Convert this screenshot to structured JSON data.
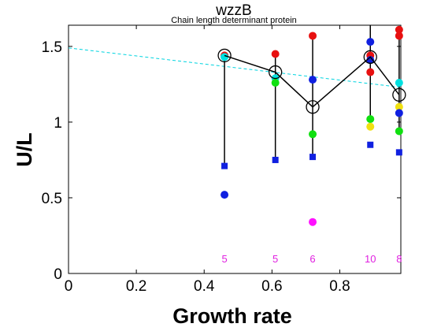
{
  "chart_data": {
    "type": "scatter",
    "title": "wzzB",
    "subtitle": "Chain length determinant protein",
    "xlabel": "Growth rate",
    "ylabel": "U/L",
    "xlim": [
      0,
      0.98
    ],
    "ylim": [
      0,
      1.64
    ],
    "xticks": [
      "0",
      "0.2",
      "0.4",
      "0.6",
      "0.8"
    ],
    "yticks": [
      "0",
      "0.5",
      "1",
      "1.5"
    ],
    "xtick_values": [
      0,
      0.2,
      0.4,
      0.6,
      0.8
    ],
    "ytick_values": [
      0,
      0.5,
      1,
      1.5
    ],
    "trend_line": {
      "color": "#00d4e0",
      "from": [
        0,
        1.49
      ],
      "to": [
        0.98,
        1.23
      ]
    },
    "mean_series": {
      "x": [
        0.46,
        0.61,
        0.72,
        0.89,
        0.975
      ],
      "y": [
        1.44,
        1.33,
        1.1,
        1.43,
        1.18
      ],
      "range_low": [
        0.71,
        0.75,
        0.77,
        1.02,
        0.94
      ],
      "range_high": [
        1.45,
        1.45,
        1.57,
        1.64,
        1.61
      ]
    },
    "points": [
      {
        "x": 0.46,
        "y": 1.44,
        "color": "#e81010",
        "shape": "circle"
      },
      {
        "x": 0.46,
        "y": 1.43,
        "color": "#00e0e0",
        "shape": "circle"
      },
      {
        "x": 0.46,
        "y": 0.71,
        "color": "#1020e0",
        "shape": "square"
      },
      {
        "x": 0.46,
        "y": 0.52,
        "color": "#1020e0",
        "shape": "circle"
      },
      {
        "x": 0.61,
        "y": 1.45,
        "color": "#e81010",
        "shape": "circle"
      },
      {
        "x": 0.61,
        "y": 1.29,
        "color": "#00e0e0",
        "shape": "circle"
      },
      {
        "x": 0.61,
        "y": 1.26,
        "color": "#10e010",
        "shape": "circle"
      },
      {
        "x": 0.61,
        "y": 0.75,
        "color": "#1020e0",
        "shape": "square"
      },
      {
        "x": 0.72,
        "y": 1.57,
        "color": "#e81010",
        "shape": "circle"
      },
      {
        "x": 0.72,
        "y": 1.28,
        "color": "#1020e0",
        "shape": "circle"
      },
      {
        "x": 0.72,
        "y": 0.92,
        "color": "#10e010",
        "shape": "circle"
      },
      {
        "x": 0.72,
        "y": 0.77,
        "color": "#1020e0",
        "shape": "square"
      },
      {
        "x": 0.72,
        "y": 0.34,
        "color": "#ff10ff",
        "shape": "circle"
      },
      {
        "x": 0.89,
        "y": 1.53,
        "color": "#1020e0",
        "shape": "circle"
      },
      {
        "x": 0.89,
        "y": 1.44,
        "color": "#e81010",
        "shape": "circle"
      },
      {
        "x": 0.89,
        "y": 1.41,
        "color": "#1020e0",
        "shape": "circle"
      },
      {
        "x": 0.89,
        "y": 1.33,
        "color": "#e81010",
        "shape": "circle"
      },
      {
        "x": 0.89,
        "y": 1.02,
        "color": "#10e010",
        "shape": "circle"
      },
      {
        "x": 0.89,
        "y": 0.97,
        "color": "#f0e010",
        "shape": "circle"
      },
      {
        "x": 0.89,
        "y": 0.85,
        "color": "#1020e0",
        "shape": "square"
      },
      {
        "x": 0.975,
        "y": 1.61,
        "color": "#e81010",
        "shape": "circle"
      },
      {
        "x": 0.975,
        "y": 1.57,
        "color": "#e81010",
        "shape": "circle"
      },
      {
        "x": 0.975,
        "y": 1.26,
        "color": "#00e0e0",
        "shape": "circle"
      },
      {
        "x": 0.975,
        "y": 1.1,
        "color": "#f0e010",
        "shape": "circle"
      },
      {
        "x": 0.975,
        "y": 1.06,
        "color": "#1020e0",
        "shape": "circle"
      },
      {
        "x": 0.975,
        "y": 0.94,
        "color": "#10e010",
        "shape": "circle"
      },
      {
        "x": 0.975,
        "y": 0.8,
        "color": "#1020e0",
        "shape": "square"
      }
    ],
    "counts": [
      {
        "x": 0.46,
        "label": "5"
      },
      {
        "x": 0.61,
        "label": "5"
      },
      {
        "x": 0.72,
        "label": "6"
      },
      {
        "x": 0.89,
        "label": "10"
      },
      {
        "x": 0.975,
        "label": "8"
      }
    ],
    "count_color": "#e020e0",
    "count_y": 0.1,
    "grid": false
  }
}
